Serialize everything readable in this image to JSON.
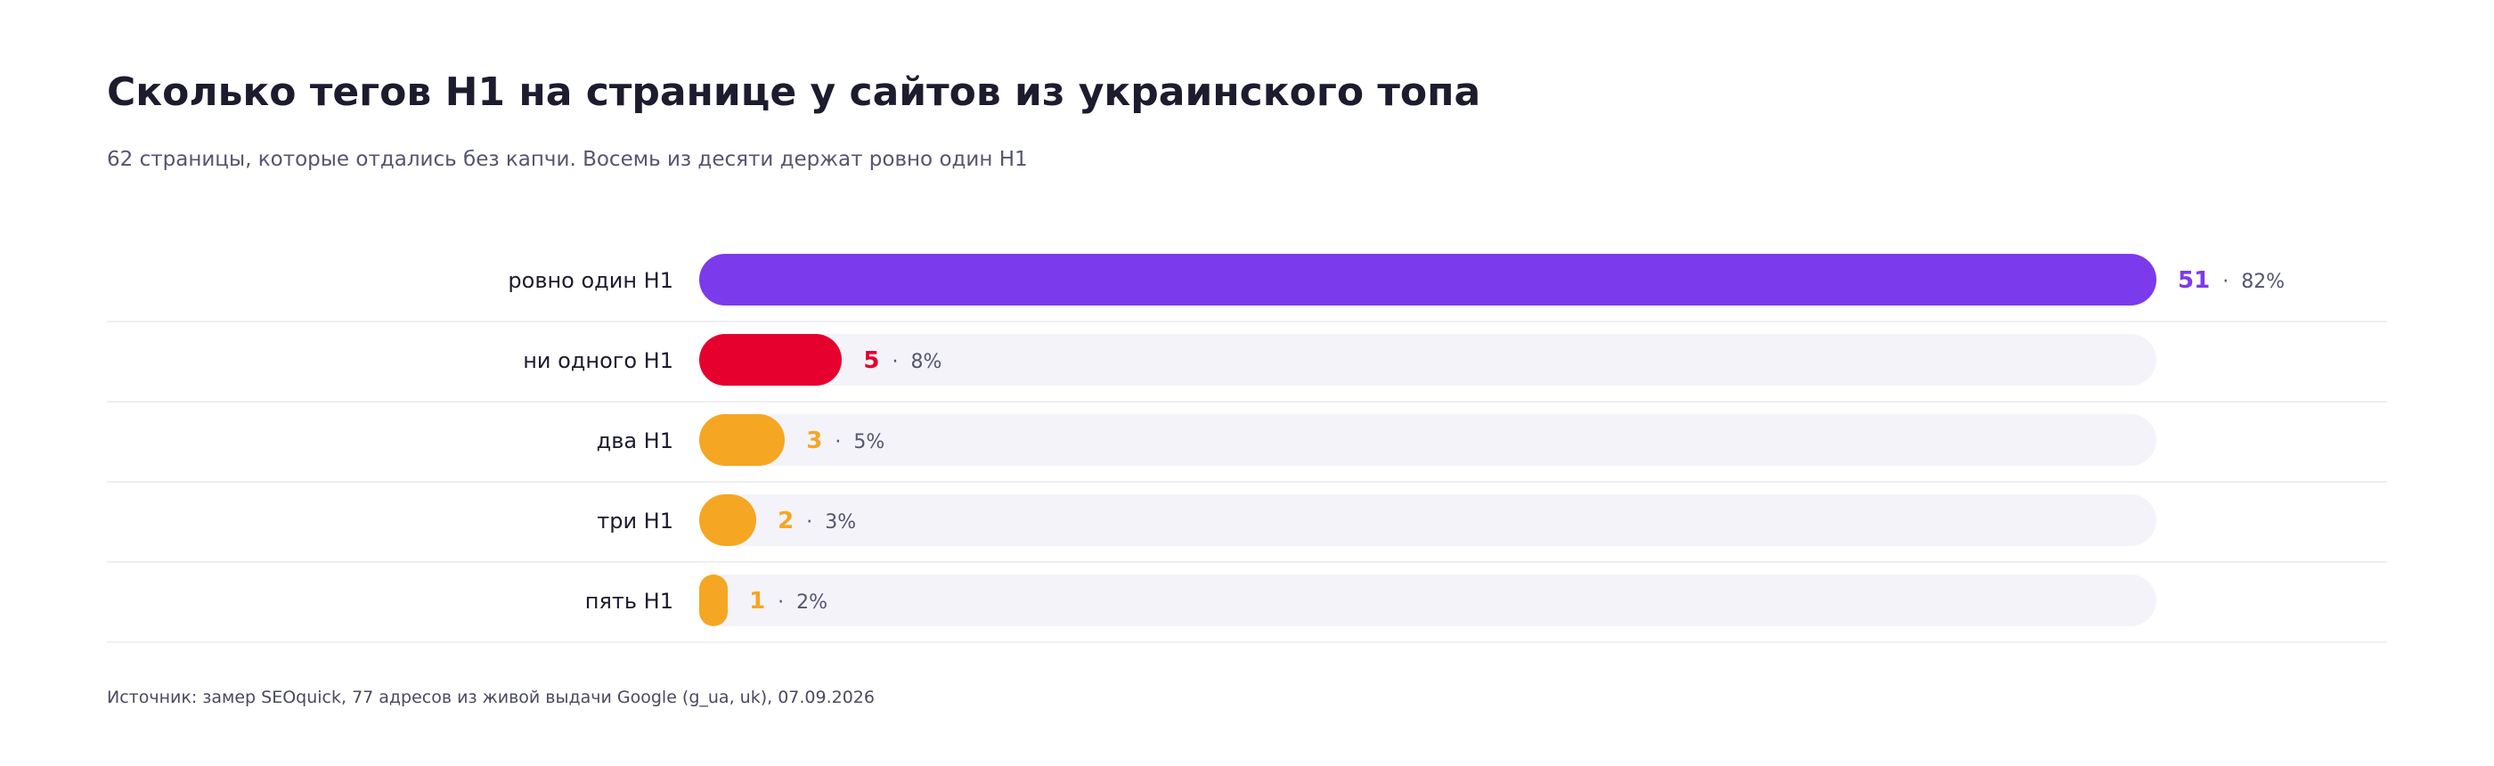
{
  "title": "Сколько тегов H1 на странице у сайтов из украинского топа",
  "subtitle": "62 страницы, которые отдались без капчи. Восемь из десяти держат ровно один H1",
  "source": "Источник: замер SEOquick, 77 адресов из живой выдачи Google (g_ua, uk), 07.09.2026",
  "separator": "·",
  "chart_data": {
    "type": "bar",
    "orientation": "horizontal",
    "title": "Сколько тегов H1 на странице у сайтов из украинского топа",
    "subtitle": "62 страницы, которые отдались без капчи. Восемь из десяти держат ровно один H1",
    "categories": [
      "ровно один H1",
      "ни одного H1",
      "два H1",
      "три H1",
      "пять H1"
    ],
    "values": [
      51,
      5,
      3,
      2,
      1
    ],
    "value_labels": [
      "51",
      "5",
      "3",
      "2",
      "1"
    ],
    "percent_labels": [
      "82%",
      "8%",
      "5%",
      "3%",
      "2%"
    ],
    "colors": [
      "#7c3aed",
      "#e5002d",
      "#f5a623",
      "#f5a623",
      "#f5a623"
    ],
    "track_color": "#f4f3fa",
    "xlim": [
      0,
      51
    ],
    "grid": false,
    "legend": "none"
  }
}
